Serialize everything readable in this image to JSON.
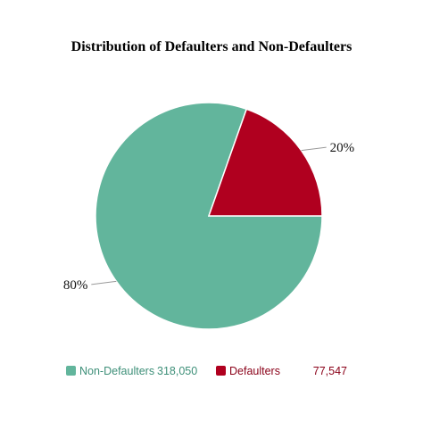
{
  "chart_data": {
    "type": "pie",
    "title": "Distribution of Defaulters and Non-Defaulters",
    "slices": [
      {
        "label": "Non-Defaulters",
        "value": 318050,
        "value_label": "318,050",
        "percent_label": "80%",
        "color": "#62b59c",
        "text_color": "#3d8f78"
      },
      {
        "label": "Defaulters",
        "value": 77547,
        "value_label": "77,547",
        "percent_label": "20%",
        "color": "#b0001f",
        "text_color": "#8a0018"
      }
    ],
    "legend_position": "bottom"
  }
}
